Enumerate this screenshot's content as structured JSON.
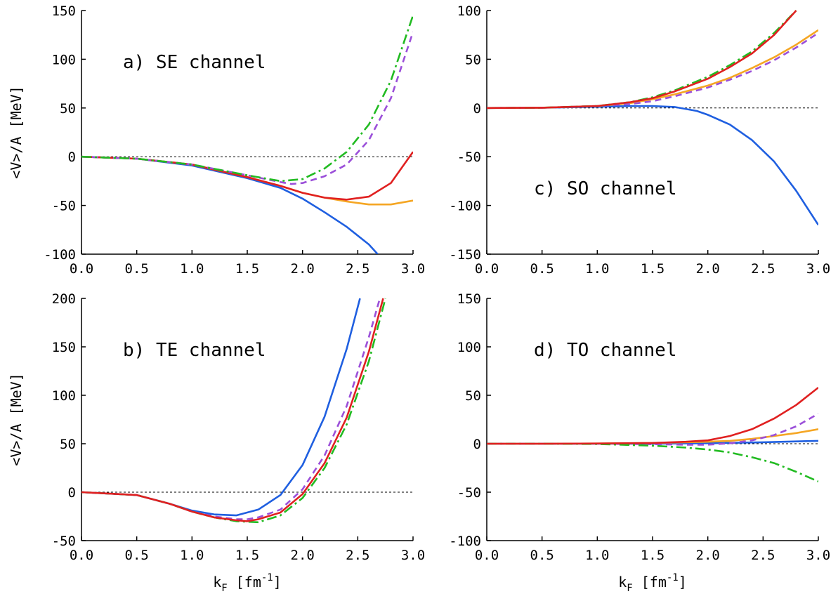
{
  "chart_data": [
    {
      "type": "line",
      "annotation": "a) SE channel",
      "ylabel": "<V>/A [MeV]",
      "xlabel": "",
      "xlim": [
        0,
        3
      ],
      "ylim": [
        -100,
        150
      ],
      "xticks": [
        "0.0",
        "0.5",
        "1.0",
        "1.5",
        "2.0",
        "2.5",
        "3.0"
      ],
      "yticks": [
        "150",
        "100",
        "50",
        "0",
        "-50",
        "-100"
      ],
      "zero_line": true,
      "series": [
        {
          "color": "#1f5fe0",
          "style": "solid",
          "x": [
            0,
            0.5,
            1.0,
            1.5,
            1.8,
            2.0,
            2.2,
            2.4,
            2.6,
            2.68
          ],
          "y": [
            0,
            -2,
            -9,
            -22,
            -32,
            -43,
            -57,
            -72,
            -90,
            -100
          ]
        },
        {
          "color": "#f5a623",
          "style": "solid",
          "x": [
            0,
            0.5,
            1.0,
            1.5,
            1.8,
            2.0,
            2.2,
            2.4,
            2.6,
            2.8,
            3.0
          ],
          "y": [
            0,
            -2,
            -8,
            -21,
            -30,
            -37,
            -42,
            -46,
            -49,
            -49,
            -45
          ]
        },
        {
          "color": "#e02020",
          "style": "solid",
          "x": [
            0,
            0.5,
            1.0,
            1.5,
            1.8,
            2.0,
            2.2,
            2.4,
            2.6,
            2.8,
            3.0
          ],
          "y": [
            0,
            -2,
            -8,
            -21,
            -30,
            -37,
            -42,
            -44,
            -41,
            -27,
            5
          ]
        },
        {
          "color": "#9b4fd9",
          "style": "dashed",
          "x": [
            0,
            0.5,
            1.0,
            1.5,
            1.8,
            1.9,
            2.0,
            2.2,
            2.4,
            2.6,
            2.8,
            3.0
          ],
          "y": [
            0,
            -2,
            -8,
            -19,
            -26,
            -28,
            -27,
            -20,
            -8,
            17,
            60,
            128
          ]
        },
        {
          "color": "#22bb22",
          "style": "dashdot",
          "x": [
            0,
            0.5,
            1.0,
            1.5,
            1.8,
            2.0,
            2.2,
            2.4,
            2.6,
            2.8,
            3.0
          ],
          "y": [
            0,
            -2,
            -8,
            -19,
            -25,
            -23,
            -12,
            5,
            33,
            78,
            145
          ]
        }
      ]
    },
    {
      "type": "line",
      "annotation": "c) SO channel",
      "ylabel": "",
      "xlabel": "",
      "xlim": [
        0,
        3
      ],
      "ylim": [
        -150,
        100
      ],
      "xticks": [
        "0.0",
        "0.5",
        "1.0",
        "1.5",
        "2.0",
        "2.5",
        "3.0"
      ],
      "yticks": [
        "100",
        "50",
        "0",
        "-50",
        "-100",
        "-150"
      ],
      "zero_line": true,
      "series": [
        {
          "color": "#1f5fe0",
          "style": "solid",
          "x": [
            0,
            0.5,
            1.0,
            1.3,
            1.5,
            1.7,
            1.9,
            2.0,
            2.2,
            2.4,
            2.6,
            2.8,
            3.0
          ],
          "y": [
            0,
            0.3,
            1.2,
            2,
            2,
            1,
            -3,
            -7,
            -17,
            -33,
            -55,
            -85,
            -120
          ]
        },
        {
          "color": "#f5a623",
          "style": "solid",
          "x": [
            0,
            0.5,
            1.0,
            1.3,
            1.5,
            1.7,
            2.0,
            2.2,
            2.4,
            2.6,
            2.8,
            3.0
          ],
          "y": [
            0,
            0.3,
            2,
            5,
            9,
            14,
            23,
            31,
            41,
            52,
            65,
            80
          ]
        },
        {
          "color": "#9b4fd9",
          "style": "dashed",
          "x": [
            0,
            0.5,
            1.0,
            1.3,
            1.5,
            1.7,
            2.0,
            2.2,
            2.4,
            2.6,
            2.8,
            3.0
          ],
          "y": [
            0,
            0.3,
            2,
            4,
            7,
            12,
            21,
            29,
            38,
            49,
            62,
            77
          ]
        },
        {
          "color": "#22bb22",
          "style": "dashdot",
          "x": [
            0,
            0.5,
            1.0,
            1.3,
            1.5,
            1.7,
            2.0,
            2.2,
            2.4,
            2.6,
            2.8
          ],
          "y": [
            0,
            0.3,
            2,
            6,
            11,
            18,
            32,
            44,
            58,
            77,
            100
          ]
        },
        {
          "color": "#e02020",
          "style": "solid",
          "x": [
            0,
            0.5,
            1.0,
            1.3,
            1.5,
            1.7,
            2.0,
            2.2,
            2.4,
            2.6,
            2.8
          ],
          "y": [
            0,
            0.3,
            2,
            6,
            10,
            17,
            30,
            42,
            56,
            75,
            100
          ]
        }
      ]
    },
    {
      "type": "line",
      "annotation": "b) TE channel",
      "ylabel": "<V>/A [MeV]",
      "xlabel": "k_F [fm^-1]",
      "xlim": [
        0,
        3
      ],
      "ylim": [
        -50,
        200
      ],
      "xticks": [
        "0.0",
        "0.5",
        "1.0",
        "1.5",
        "2.0",
        "2.5",
        "3.0"
      ],
      "yticks": [
        "200",
        "150",
        "100",
        "50",
        "0",
        "-50"
      ],
      "zero_line": true,
      "series": [
        {
          "color": "#1f5fe0",
          "style": "solid",
          "x": [
            0,
            0.5,
            0.8,
            1.0,
            1.2,
            1.4,
            1.6,
            1.8,
            2.0,
            2.2,
            2.4,
            2.52
          ],
          "y": [
            0,
            -3,
            -12,
            -19,
            -23,
            -24,
            -18,
            -3,
            28,
            78,
            148,
            200
          ]
        },
        {
          "color": "#9b4fd9",
          "style": "dashed",
          "x": [
            0,
            0.5,
            0.8,
            1.0,
            1.2,
            1.4,
            1.5,
            1.6,
            1.8,
            2.0,
            2.2,
            2.4,
            2.6,
            2.7
          ],
          "y": [
            0,
            -3,
            -12,
            -20,
            -25,
            -28,
            -28,
            -26,
            -18,
            3,
            38,
            89,
            160,
            200
          ]
        },
        {
          "color": "#22bb22",
          "style": "dashdot",
          "x": [
            0,
            0.5,
            0.8,
            1.0,
            1.2,
            1.4,
            1.6,
            1.8,
            2.0,
            2.2,
            2.4,
            2.6,
            2.75
          ],
          "y": [
            0,
            -3,
            -12,
            -20,
            -26,
            -30,
            -31,
            -24,
            -6,
            25,
            70,
            135,
            200
          ]
        },
        {
          "color": "#e02020",
          "style": "solid",
          "x": [
            0,
            0.5,
            0.8,
            1.0,
            1.2,
            1.4,
            1.5,
            1.6,
            1.8,
            2.0,
            2.2,
            2.4,
            2.6,
            2.73
          ],
          "y": [
            0,
            -3,
            -12,
            -20,
            -26,
            -29,
            -30,
            -28,
            -21,
            -2,
            30,
            77,
            145,
            200
          ]
        }
      ]
    },
    {
      "type": "line",
      "annotation": "d) TO channel",
      "ylabel": "",
      "xlabel": "k_F [fm^-1]",
      "xlim": [
        0,
        3
      ],
      "ylim": [
        -100,
        150
      ],
      "xticks": [
        "0.0",
        "0.5",
        "1.0",
        "1.5",
        "2.0",
        "2.5",
        "3.0"
      ],
      "yticks": [
        "150",
        "100",
        "50",
        "0",
        "-50",
        "-100"
      ],
      "zero_line": true,
      "series": [
        {
          "color": "#1f5fe0",
          "style": "solid",
          "x": [
            0,
            0.5,
            1.0,
            1.5,
            2.0,
            2.5,
            3.0
          ],
          "y": [
            0,
            0,
            0,
            0,
            0.5,
            1.5,
            3
          ]
        },
        {
          "color": "#f5a623",
          "style": "solid",
          "x": [
            0,
            0.5,
            1.0,
            1.5,
            2.0,
            2.2,
            2.4,
            2.6,
            2.8,
            3.0
          ],
          "y": [
            0,
            0,
            0.2,
            0.8,
            2,
            3,
            5,
            8,
            11,
            15
          ]
        },
        {
          "color": "#9b4fd9",
          "style": "dashed",
          "x": [
            0,
            0.5,
            1.0,
            1.5,
            1.8,
            2.0,
            2.2,
            2.4,
            2.6,
            2.8,
            3.0
          ],
          "y": [
            0,
            0,
            0,
            -0.5,
            -1,
            -1,
            0.5,
            3.5,
            9,
            18,
            31
          ]
        },
        {
          "color": "#22bb22",
          "style": "dashdot",
          "x": [
            0,
            0.5,
            1.0,
            1.5,
            1.8,
            2.0,
            2.2,
            2.4,
            2.6,
            2.8,
            3.0
          ],
          "y": [
            0,
            0,
            -0.3,
            -2,
            -4,
            -6,
            -9,
            -14,
            -20,
            -29,
            -39
          ]
        },
        {
          "color": "#e02020",
          "style": "solid",
          "x": [
            0,
            0.5,
            1.0,
            1.5,
            1.8,
            2.0,
            2.2,
            2.4,
            2.6,
            2.8,
            3.0
          ],
          "y": [
            0,
            0,
            0.2,
            0.8,
            2,
            3.5,
            8,
            15,
            26,
            40,
            58
          ]
        }
      ]
    }
  ]
}
